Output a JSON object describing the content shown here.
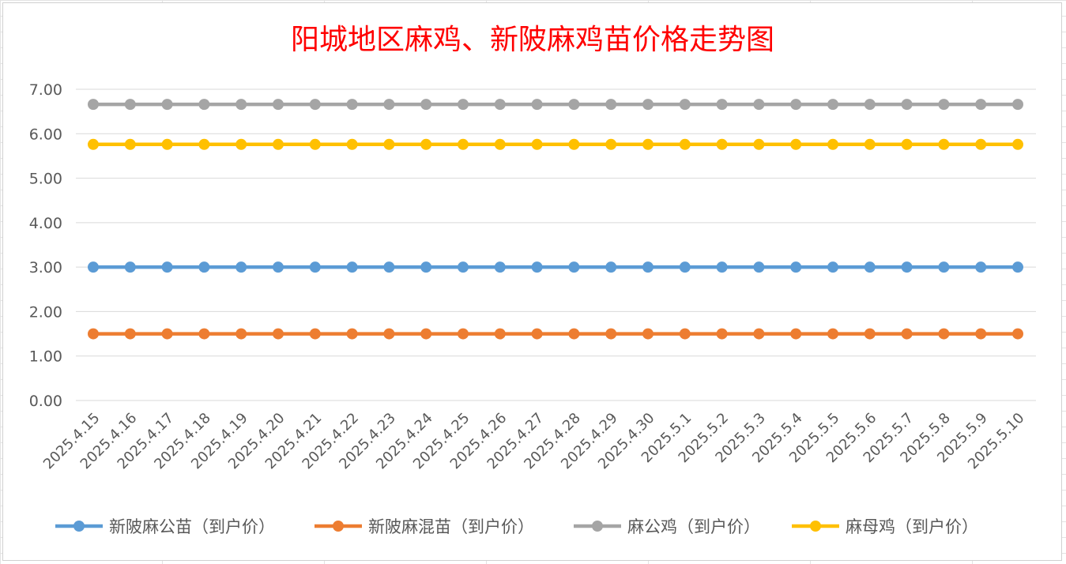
{
  "chart_data": {
    "type": "line",
    "title": "阳城地区麻鸡、新陂麻鸡苗价格走势图",
    "xlabel": "",
    "ylabel": "",
    "ylim": [
      0,
      7
    ],
    "y_ticks": [
      "0.00",
      "1.00",
      "2.00",
      "3.00",
      "4.00",
      "5.00",
      "6.00",
      "7.00"
    ],
    "grid": true,
    "legend_position": "bottom",
    "categories": [
      "2025.4.15",
      "2025.4.16",
      "2025.4.17",
      "2025.4.18",
      "2025.4.19",
      "2025.4.20",
      "2025.4.21",
      "2025.4.22",
      "2025.4.23",
      "2025.4.24",
      "2025.4.25",
      "2025.4.26",
      "2025.4.27",
      "2025.4.28",
      "2025.4.29",
      "2025.4.30",
      "2025.5.1",
      "2025.5.2",
      "2025.5.3",
      "2025.5.4",
      "2025.5.5",
      "2025.5.6",
      "2025.5.7",
      "2025.5.8",
      "2025.5.9",
      "2025.5.10"
    ],
    "series": [
      {
        "name": "新陂麻公苗（到户价）",
        "color": "#5b9bd5",
        "values": [
          3,
          3,
          3,
          3,
          3,
          3,
          3,
          3,
          3,
          3,
          3,
          3,
          3,
          3,
          3,
          3,
          3,
          3,
          3,
          3,
          3,
          3,
          3,
          3,
          3,
          3
        ]
      },
      {
        "name": "新陂麻混苗（到户价）",
        "color": "#ed7d31",
        "values": [
          1.5,
          1.5,
          1.5,
          1.5,
          1.5,
          1.5,
          1.5,
          1.5,
          1.5,
          1.5,
          1.5,
          1.5,
          1.5,
          1.5,
          1.5,
          1.5,
          1.5,
          1.5,
          1.5,
          1.5,
          1.5,
          1.5,
          1.5,
          1.5,
          1.5,
          1.5
        ]
      },
      {
        "name": "麻公鸡（到户价）",
        "color": "#a5a5a5",
        "values": [
          6.66,
          6.66,
          6.66,
          6.66,
          6.66,
          6.66,
          6.66,
          6.66,
          6.66,
          6.66,
          6.66,
          6.66,
          6.66,
          6.66,
          6.66,
          6.66,
          6.66,
          6.66,
          6.66,
          6.66,
          6.66,
          6.66,
          6.66,
          6.66,
          6.66,
          6.66
        ]
      },
      {
        "name": "麻母鸡（到户价）",
        "color": "#ffc000",
        "values": [
          5.76,
          5.76,
          5.76,
          5.76,
          5.76,
          5.76,
          5.76,
          5.76,
          5.76,
          5.76,
          5.76,
          5.76,
          5.76,
          5.76,
          5.76,
          5.76,
          5.76,
          5.76,
          5.76,
          5.76,
          5.76,
          5.76,
          5.76,
          5.76,
          5.76,
          5.76
        ]
      }
    ]
  }
}
